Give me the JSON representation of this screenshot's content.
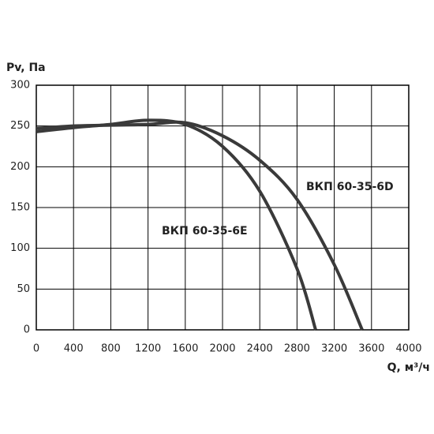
{
  "chart_data": {
    "type": "line",
    "y_label": "Pv, Па",
    "x_label": "Q, м³/ч",
    "xlim": [
      0,
      4000
    ],
    "xticks": [
      0,
      400,
      800,
      1200,
      1600,
      2000,
      2400,
      2800,
      3200,
      3600,
      4000
    ],
    "ylim": [
      0,
      300
    ],
    "yticks": [
      0,
      50,
      100,
      150,
      200,
      250,
      300
    ],
    "grid": true,
    "series": [
      {
        "name": "ВКП 60-35-6E",
        "color": "#3a3a3a",
        "x": [
          0,
          400,
          800,
          1200,
          1600,
          2000,
          2400,
          2800,
          3000
        ],
        "values": [
          243,
          248,
          252,
          257,
          252,
          225,
          170,
          75,
          0
        ]
      },
      {
        "name": "ВКП 60-35-6D",
        "color": "#3a3a3a",
        "x": [
          0,
          400,
          800,
          1200,
          1600,
          2000,
          2400,
          2800,
          3200,
          3500
        ],
        "values": [
          247,
          250,
          251,
          252,
          254,
          238,
          208,
          160,
          80,
          0
        ]
      }
    ]
  }
}
